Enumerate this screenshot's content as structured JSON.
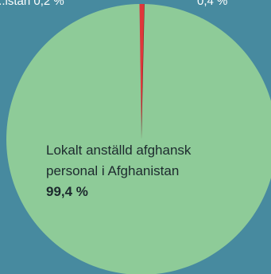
{
  "chart_data": {
    "type": "pie",
    "title": "",
    "slices": [
      {
        "label_lines": [
          "Lokalt anställd afghansk",
          "personal i Afghanistan"
        ],
        "value": 99.4,
        "value_label": "99,4 %",
        "color": "#8ecb98"
      },
      {
        "value": 0.6,
        "color": "#e0373a"
      }
    ],
    "top_labels": {
      "left": "...istan 0,2 %",
      "right": "0,4 %"
    },
    "colors": {
      "background": "#478a9f",
      "main_slice": "#8ecb98",
      "small_slice": "#e0373a",
      "small_slice_dark": "#7a1f22"
    }
  }
}
